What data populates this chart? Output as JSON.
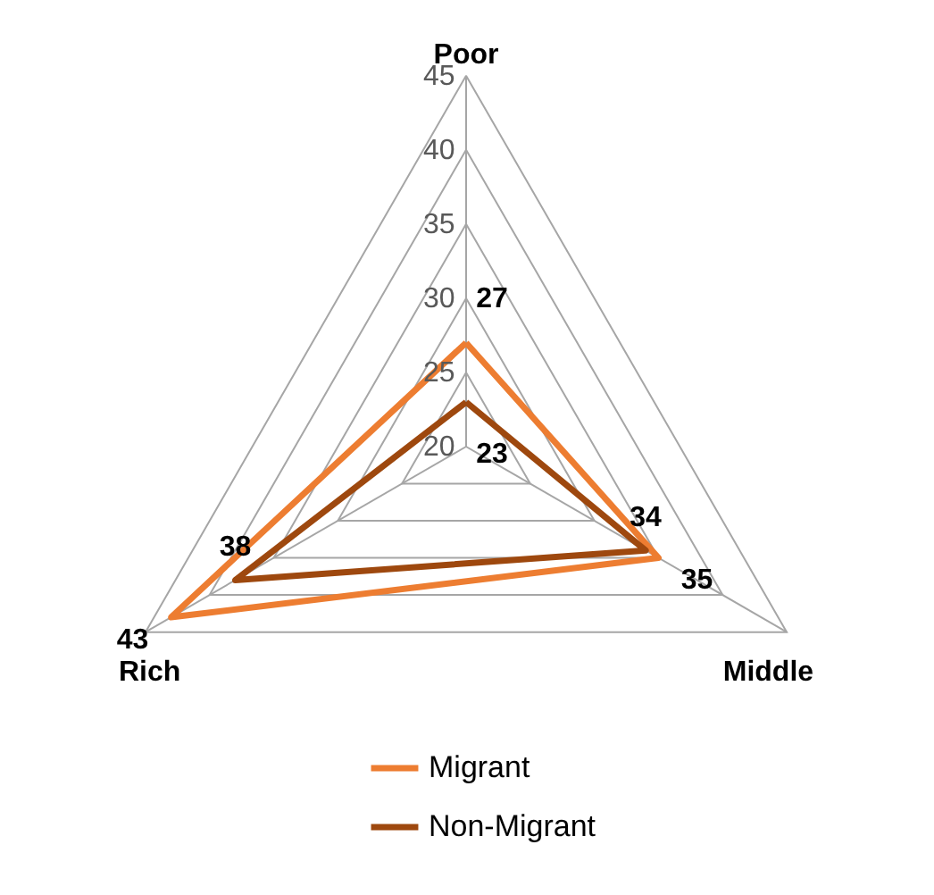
{
  "chart_data": {
    "type": "radar",
    "categories": [
      "Poor",
      "Middle",
      "Rich"
    ],
    "ylim": [
      20,
      45
    ],
    "yticks": [
      20,
      25,
      30,
      35,
      40,
      45
    ],
    "data_labels": true,
    "legend": "bottom",
    "grid": true,
    "series": [
      {
        "name": "Migrant",
        "color": "#ed7d31",
        "values": [
          27,
          35,
          43
        ]
      },
      {
        "name": "Non-Migrant",
        "color": "#9e480e",
        "values": [
          23,
          34,
          38
        ]
      }
    ]
  }
}
